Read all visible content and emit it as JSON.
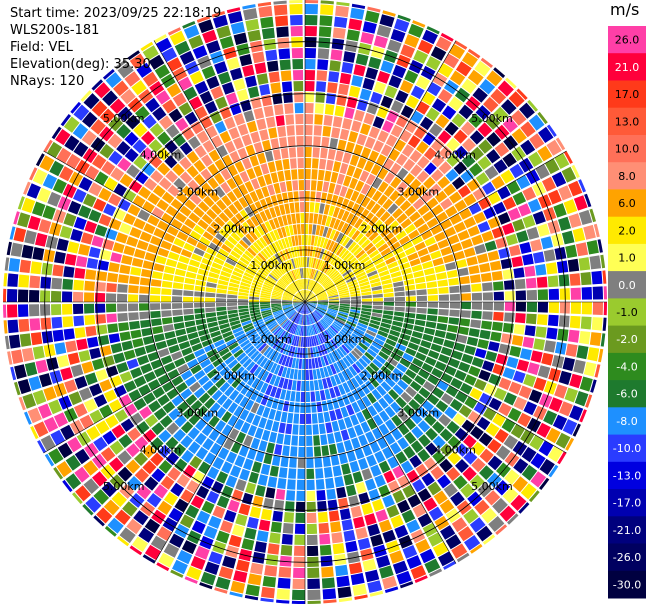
{
  "header": {
    "start_time": "Start time: 2023/09/25 22:18:19",
    "instrument": "WLS200s-181",
    "field": "Field: VEL",
    "elevation": "Elevation(deg): 35.30",
    "nrays": "NRays: 120"
  },
  "colorbar": {
    "unit": "m/s",
    "levels": [
      {
        "label": "26.0",
        "color": "#ff3fa7"
      },
      {
        "label": "21.0",
        "color": "#ff003b"
      },
      {
        "label": "17.0",
        "color": "#ff3a1a"
      },
      {
        "label": "13.0",
        "color": "#ff5a38"
      },
      {
        "label": "10.0",
        "color": "#ff7058"
      },
      {
        "label": "8.0",
        "color": "#ff8f75"
      },
      {
        "label": "6.0",
        "color": "#ffa300"
      },
      {
        "label": "2.0",
        "color": "#ffea00"
      },
      {
        "label": "1.0",
        "color": "#ffff55"
      },
      {
        "label": "0.0",
        "color": "#7f7f7f"
      },
      {
        "label": "-1.0",
        "color": "#9acb2e"
      },
      {
        "label": "-2.0",
        "color": "#6b9a1f"
      },
      {
        "label": "-4.0",
        "color": "#2e8b1e"
      },
      {
        "label": "-6.0",
        "color": "#1e7a2e"
      },
      {
        "label": "-8.0",
        "color": "#1e90ff"
      },
      {
        "label": "-10.0",
        "color": "#2a3cff"
      },
      {
        "label": "-13.0",
        "color": "#0000e0"
      },
      {
        "label": "-17.0",
        "color": "#0000b0"
      },
      {
        "label": "-21.0",
        "color": "#00007d"
      },
      {
        "label": "-26.0",
        "color": "#000060"
      },
      {
        "label": "-30.0",
        "color": "#000040"
      }
    ]
  },
  "chart_data": {
    "type": "heatmap",
    "subtype": "polar-ppi",
    "field": "VEL",
    "units": "m/s",
    "nrays": 120,
    "range_rings": [
      {
        "value_km": 1.0,
        "label": "1.00km"
      },
      {
        "value_km": 2.0,
        "label": "2.00km"
      },
      {
        "value_km": 3.0,
        "label": "3.00km"
      },
      {
        "value_km": 4.0,
        "label": "4.00km"
      },
      {
        "value_km": 5.0,
        "label": "5.00km"
      }
    ],
    "max_range_km": 5.8,
    "spokes_deg": [
      0,
      30,
      60,
      90,
      120,
      150,
      180,
      210,
      240,
      270,
      300,
      330
    ],
    "pattern": {
      "north_half_mps": [
        1.0,
        6.0
      ],
      "south_half_mps": [
        -8.0,
        -2.0
      ],
      "noise_beyond_km": 3.4
    }
  }
}
